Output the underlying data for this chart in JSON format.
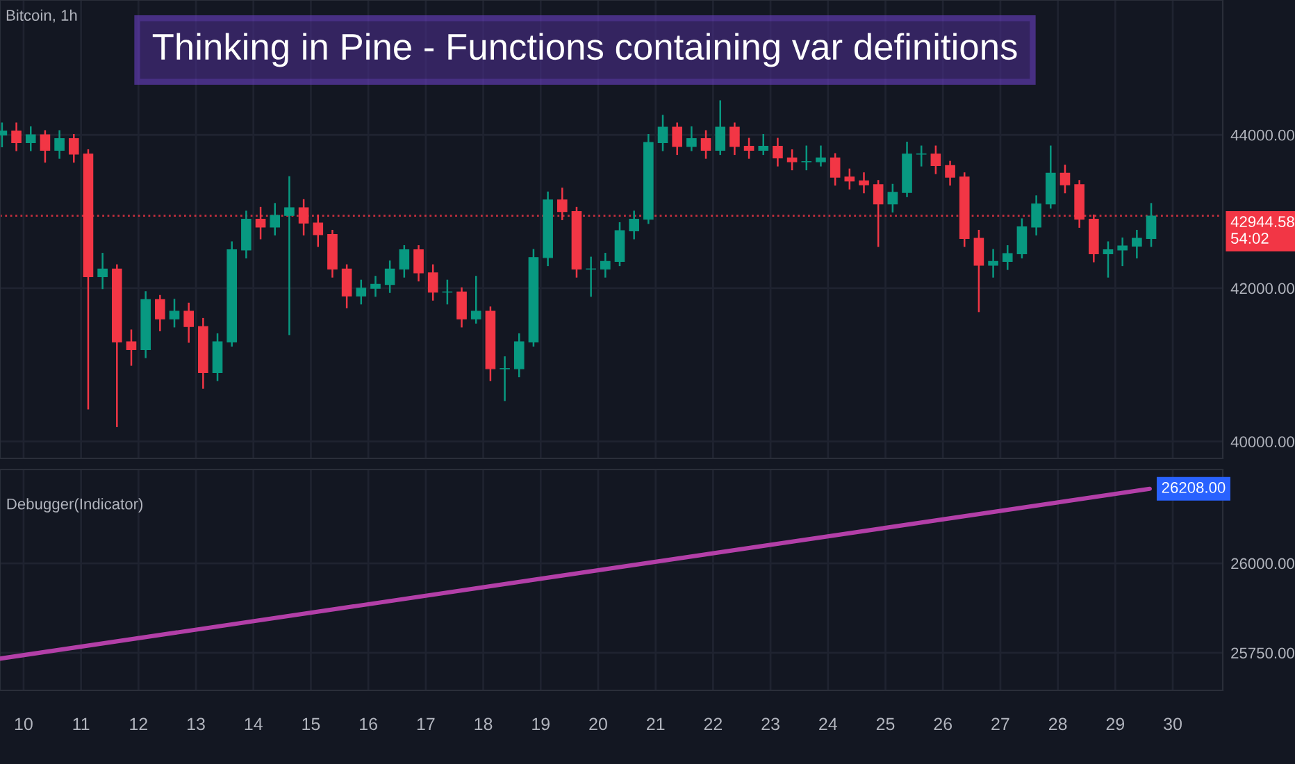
{
  "chart_data": [
    {
      "type": "candlestick",
      "title": "Thinking in Pine - Functions containing var definitions",
      "subtitle": "Bitcoin, 1h",
      "x": [
        9.625,
        9.875,
        10.125,
        10.375,
        10.625,
        10.875,
        11.125,
        11.375,
        11.625,
        11.875,
        12.125,
        12.375,
        12.625,
        12.875,
        13.125,
        13.375,
        13.625,
        13.875,
        14.125,
        14.375,
        14.625,
        14.875,
        15.125,
        15.375,
        15.625,
        15.875,
        16.125,
        16.375,
        16.625,
        16.875,
        17.125,
        17.375,
        17.625,
        17.875,
        18.125,
        18.375,
        18.625,
        18.875,
        19.125,
        19.375,
        19.625,
        19.875,
        20.125,
        20.375,
        20.625,
        20.875,
        21.125,
        21.375,
        21.625,
        21.875,
        22.125,
        22.375,
        22.625,
        22.875,
        23.125,
        23.375,
        23.625,
        23.875,
        24.125,
        24.375,
        24.625,
        24.875,
        25.125,
        25.375,
        25.625,
        25.875,
        26.125,
        26.375,
        26.625,
        26.875,
        27.125,
        27.375,
        27.625,
        27.875,
        28.125,
        28.375,
        28.625,
        28.875,
        29.125,
        29.375,
        29.625
      ],
      "ohlc": [
        [
          44000,
          44150,
          43850,
          44050
        ],
        [
          44050,
          44150,
          43800,
          43900
        ],
        [
          43900,
          44100,
          43800,
          44000
        ],
        [
          44000,
          44050,
          43650,
          43800
        ],
        [
          43800,
          44050,
          43700,
          43950
        ],
        [
          43950,
          44000,
          43650,
          43750
        ],
        [
          43750,
          43800,
          40430,
          42150
        ],
        [
          42150,
          42450,
          42000,
          42250
        ],
        [
          42250,
          42300,
          40200,
          41300
        ],
        [
          41300,
          41450,
          41000,
          41200
        ],
        [
          41200,
          41950,
          41100,
          41850
        ],
        [
          41850,
          41900,
          41450,
          41600
        ],
        [
          41600,
          41850,
          41500,
          41700
        ],
        [
          41700,
          41800,
          41300,
          41500
        ],
        [
          41500,
          41600,
          40700,
          40900
        ],
        [
          40900,
          41400,
          40800,
          41300
        ],
        [
          41300,
          42600,
          41250,
          42500
        ],
        [
          42500,
          43000,
          42400,
          42900
        ],
        [
          42900,
          43050,
          42650,
          42800
        ],
        [
          42800,
          43100,
          42700,
          42950
        ],
        [
          42950,
          43450,
          41400,
          43050
        ],
        [
          43050,
          43150,
          42700,
          42850
        ],
        [
          42850,
          42950,
          42550,
          42700
        ],
        [
          42700,
          42750,
          42150,
          42250
        ],
        [
          42250,
          42300,
          41750,
          41900
        ],
        [
          41900,
          42100,
          41800,
          42000
        ],
        [
          42000,
          42150,
          41900,
          42050
        ],
        [
          42050,
          42350,
          41950,
          42250
        ],
        [
          42250,
          42550,
          42150,
          42500
        ],
        [
          42500,
          42550,
          42100,
          42200
        ],
        [
          42200,
          42300,
          41850,
          41950
        ],
        [
          41950,
          42100,
          41800,
          41950
        ],
        [
          41950,
          42000,
          41500,
          41600
        ],
        [
          41600,
          42150,
          41550,
          41700
        ],
        [
          41700,
          41750,
          40800,
          40950
        ],
        [
          40950,
          41100,
          40540,
          40950
        ],
        [
          40950,
          41400,
          40850,
          41300
        ],
        [
          41300,
          42500,
          41250,
          42400
        ],
        [
          42400,
          43250,
          42300,
          43150
        ],
        [
          43150,
          43300,
          42900,
          43000
        ],
        [
          43000,
          43050,
          42150,
          42250
        ],
        [
          42250,
          42400,
          41900,
          42250
        ],
        [
          42250,
          42450,
          42150,
          42350
        ],
        [
          42350,
          42850,
          42300,
          42750
        ],
        [
          42750,
          43000,
          42650,
          42900
        ],
        [
          42900,
          44000,
          42850,
          43900
        ],
        [
          43900,
          44250,
          43800,
          44100
        ],
        [
          44100,
          44150,
          43750,
          43850
        ],
        [
          43850,
          44100,
          43800,
          43950
        ],
        [
          43950,
          44050,
          43700,
          43800
        ],
        [
          43800,
          44440,
          43750,
          44100
        ],
        [
          44100,
          44150,
          43750,
          43850
        ],
        [
          43850,
          43950,
          43700,
          43800
        ],
        [
          43800,
          44000,
          43750,
          43850
        ],
        [
          43850,
          43950,
          43600,
          43700
        ],
        [
          43700,
          43800,
          43550,
          43650
        ],
        [
          43650,
          43850,
          43550,
          43650
        ],
        [
          43650,
          43850,
          43600,
          43700
        ],
        [
          43700,
          43750,
          43350,
          43450
        ],
        [
          43450,
          43550,
          43300,
          43400
        ],
        [
          43400,
          43500,
          43250,
          43350
        ],
        [
          43350,
          43400,
          42550,
          43100
        ],
        [
          43100,
          43350,
          43000,
          43250
        ],
        [
          43250,
          43900,
          43200,
          43750
        ],
        [
          43750,
          43850,
          43600,
          43750
        ],
        [
          43750,
          43850,
          43500,
          43600
        ],
        [
          43600,
          43650,
          43350,
          43450
        ],
        [
          43450,
          43500,
          42550,
          42650
        ],
        [
          42650,
          42750,
          41700,
          42300
        ],
        [
          42300,
          42500,
          42150,
          42350
        ],
        [
          42350,
          42550,
          42250,
          42450
        ],
        [
          42450,
          42900,
          42400,
          42800
        ],
        [
          42800,
          43200,
          42700,
          43100
        ],
        [
          43100,
          43850,
          43050,
          43500
        ],
        [
          43500,
          43600,
          43250,
          43350
        ],
        [
          43350,
          43400,
          42800,
          42900
        ],
        [
          42900,
          42950,
          42350,
          42450
        ],
        [
          42450,
          42600,
          42150,
          42500
        ],
        [
          42500,
          42650,
          42300,
          42550
        ],
        [
          42550,
          42750,
          42400,
          42650
        ],
        [
          42650,
          43100,
          42550,
          42940
        ]
      ],
      "xlim": [
        9.59,
        30.87
      ],
      "ylim": [
        39780,
        45760
      ],
      "xticks": [
        10,
        11,
        12,
        13,
        14,
        15,
        16,
        17,
        18,
        19,
        20,
        21,
        22,
        23,
        24,
        25,
        26,
        27,
        28,
        29,
        30
      ],
      "yticks": [
        {
          "value": 40000,
          "label": "40000.00"
        },
        {
          "value": 42000,
          "label": "42000.00"
        },
        {
          "value": 44000,
          "label": "44000.00"
        }
      ],
      "grid": true,
      "tick_labels": "y",
      "ref_lines": [
        {
          "axis": "y",
          "value": 42944.58,
          "label": "42944.58",
          "color": "#f23645",
          "line_style": "dotted"
        }
      ],
      "annotations": [
        "54:02"
      ]
    },
    {
      "type": "line",
      "title": "Debugger(Indicator)",
      "series": [
        {
          "color": "#b33fa8",
          "x": [
            9.6,
            29.6
          ],
          "values": [
            25734,
            26208
          ],
          "value_labels": [
            null,
            "26208.00"
          ]
        }
      ],
      "xlim": [
        9.59,
        30.87
      ],
      "ylim": [
        25645,
        26262
      ],
      "xticks": [
        10,
        11,
        12,
        13,
        14,
        15,
        16,
        17,
        18,
        19,
        20,
        21,
        22,
        23,
        24,
        25,
        26,
        27,
        28,
        29,
        30
      ],
      "yticks": [
        {
          "value": 25750,
          "label": "25750.00"
        },
        {
          "value": 26000,
          "label": "26000.00"
        }
      ],
      "grid": true
    }
  ]
}
